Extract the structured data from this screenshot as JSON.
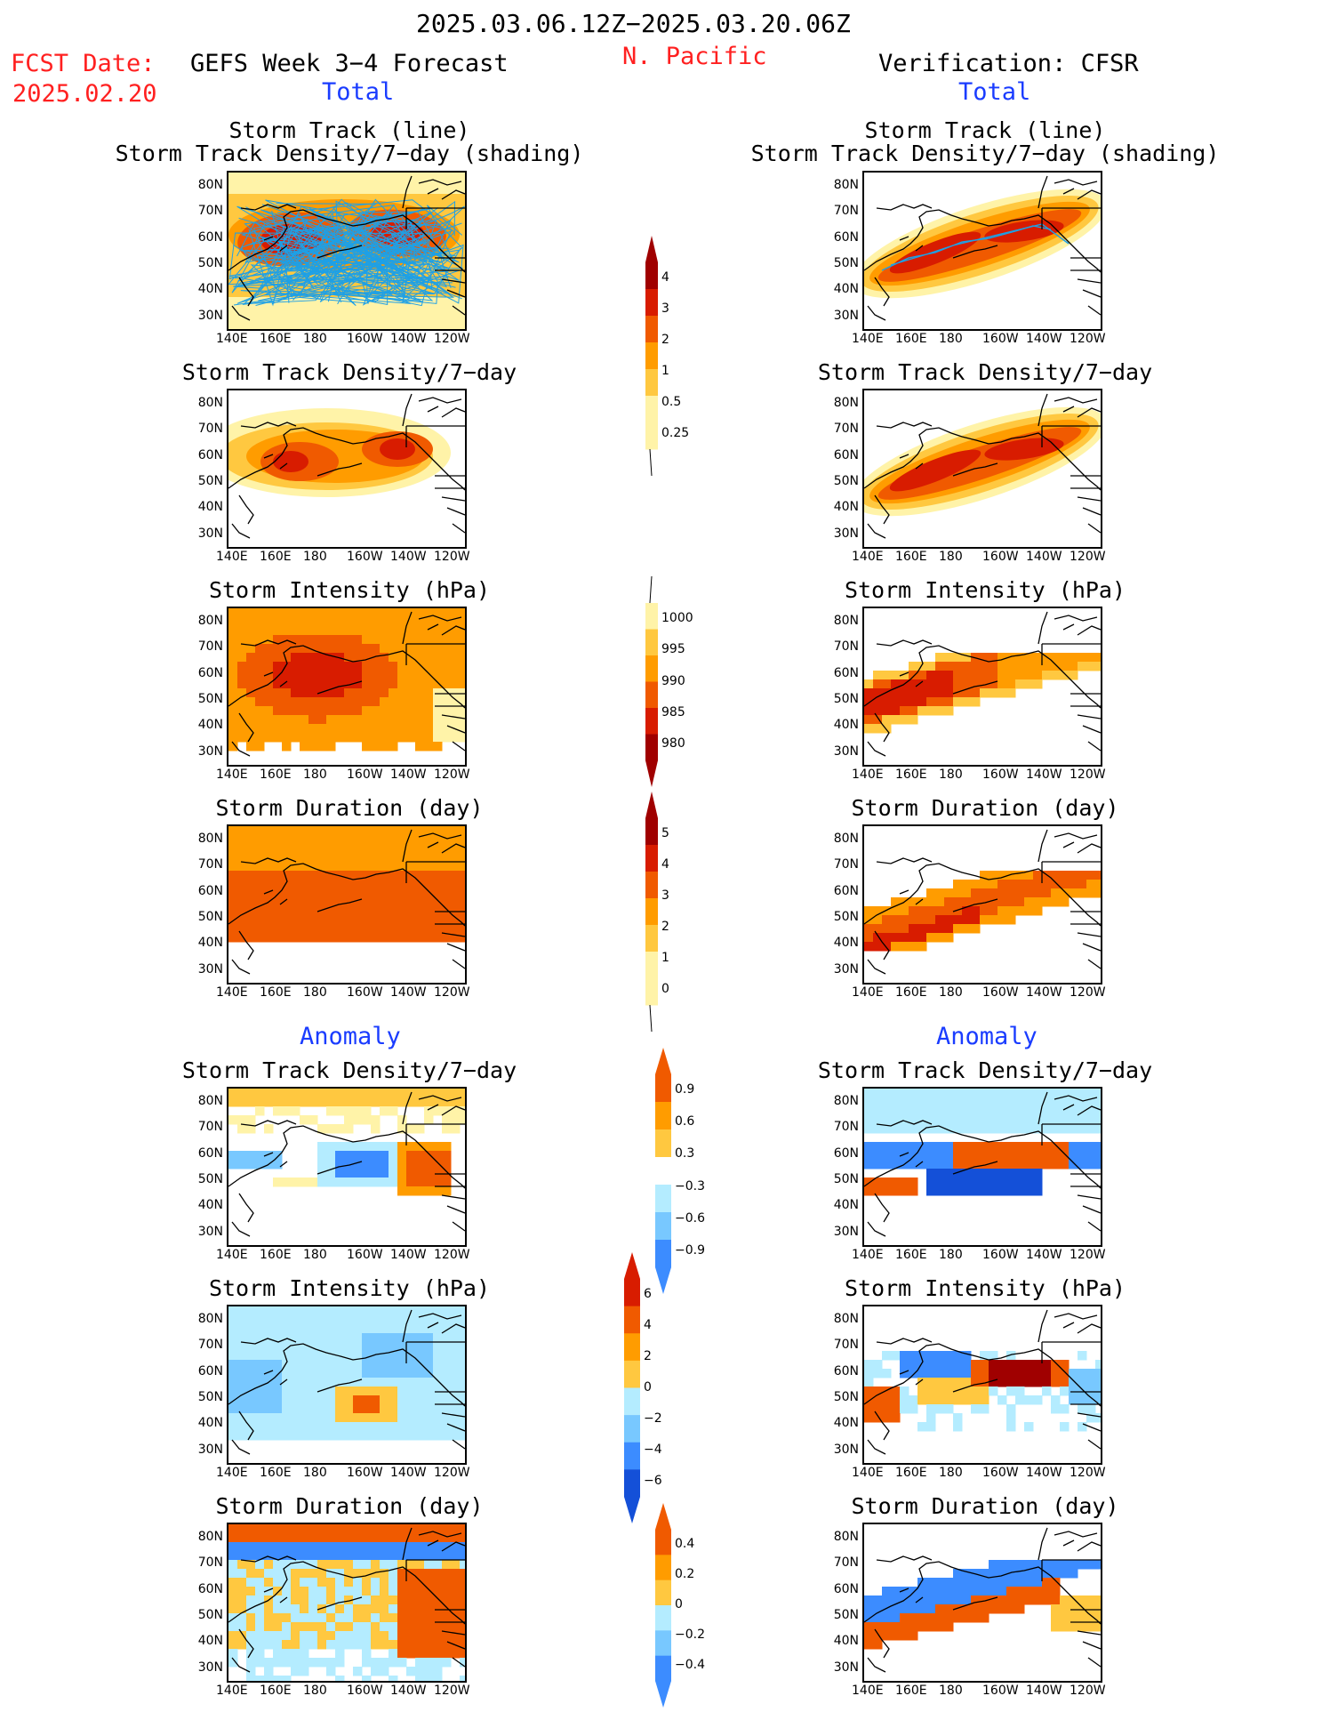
{
  "header": {
    "date_range": "2025.03.06.12Z−2025.03.20.06Z",
    "fcst_label": "FCST Date:",
    "fcst_date": "2025.02.20",
    "left_model": "GEFS Week 3−4 Forecast",
    "region": "N. Pacific",
    "right_model": "Verification: CFSR",
    "total_left": "Total",
    "total_right": "Total",
    "anomaly_left": "Anomaly",
    "anomaly_right": "Anomaly"
  },
  "titles": {
    "storm_track_line": "Storm Track (line)",
    "storm_track_shading": "Storm Track Density/7−day (shading)",
    "density": "Storm Track Density/7−day",
    "intensity": "Storm Intensity (hPa)",
    "duration": "Storm Duration (day)"
  },
  "axes": {
    "lat_labels": [
      "80N",
      "70N",
      "60N",
      "50N",
      "40N",
      "30N"
    ],
    "lon_labels": [
      "140E",
      "160E",
      "180",
      "160W",
      "140W",
      "120W"
    ]
  },
  "colorbars": {
    "density_total": [
      "4",
      "3",
      "2",
      "1",
      "0.5",
      "0.25"
    ],
    "intensity_total": [
      "1000",
      "995",
      "990",
      "985",
      "980"
    ],
    "duration_total": [
      "5",
      "4",
      "3",
      "2",
      "1",
      "0"
    ],
    "density_anom": [
      "0.9",
      "0.6",
      "0.3",
      "−0.3",
      "−0.6",
      "−0.9"
    ],
    "intensity_anom": [
      "6",
      "4",
      "2",
      "0",
      "−2",
      "−4",
      "−6"
    ],
    "duration_anom": [
      "0.4",
      "0.2",
      "0",
      "−0.2",
      "−0.4"
    ]
  },
  "colors": {
    "warm_dark": "#a00000",
    "warm_red": "#d81c00",
    "warm_orangered": "#f05a00",
    "warm_orange": "#ff9c00",
    "warm_light": "#ffc840",
    "warm_pale": "#fff3a8",
    "cool_pale": "#b4ecff",
    "cool_light": "#78c8ff",
    "cool_mid": "#3c8cff",
    "cool_dark": "#1450d8",
    "track_line": "#1ea0e6",
    "title_red": "#ff2020",
    "title_blue": "#1a3cff"
  }
}
